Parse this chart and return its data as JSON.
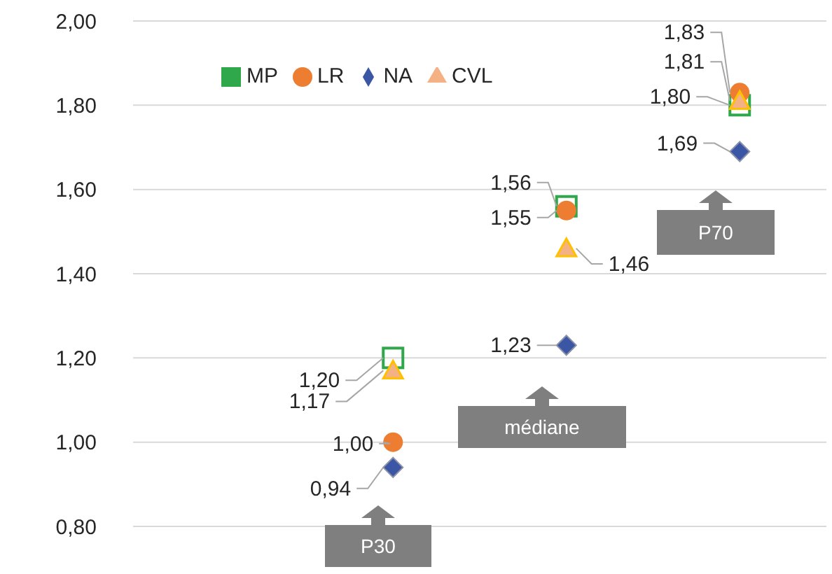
{
  "chart_data": {
    "type": "scatter",
    "categories": [
      null,
      null,
      null,
      null
    ],
    "series": [
      {
        "name": "MP",
        "color": "#2ea84a",
        "marker": "square",
        "values": [
          null,
          1.2,
          1.56,
          1.8
        ],
        "value_labels": [
          null,
          "1,20",
          "1,56",
          "1,80"
        ]
      },
      {
        "name": "LR",
        "color": "#ed7d31",
        "marker": "circle",
        "values": [
          null,
          1.0,
          1.55,
          1.83
        ],
        "value_labels": [
          null,
          "1,00",
          "1,55",
          "1,83"
        ]
      },
      {
        "name": "NA",
        "color": "#3a56a5",
        "marker": "diamond",
        "values": [
          null,
          0.94,
          1.23,
          1.69
        ],
        "value_labels": [
          null,
          "0,94",
          "1,23",
          "1,69"
        ]
      },
      {
        "name": "CVL",
        "color": "#f4b183",
        "marker": "triangle",
        "values": [
          null,
          1.17,
          1.46,
          1.81
        ],
        "value_labels": [
          null,
          "1,17",
          "1,46",
          "1,81"
        ]
      }
    ],
    "ylim": [
      0.8,
      2.0
    ],
    "yticks": [
      {
        "value": 0.8,
        "label": "0,80"
      },
      {
        "value": 1.0,
        "label": "1,00"
      },
      {
        "value": 1.2,
        "label": "1,20"
      },
      {
        "value": 1.4,
        "label": "1,40"
      },
      {
        "value": 1.6,
        "label": "1,60"
      },
      {
        "value": 1.8,
        "label": "1,80"
      },
      {
        "value": 2.0,
        "label": "2,00"
      }
    ],
    "grid": "y",
    "legend": "top left",
    "tick_labels": "y",
    "annotations": [
      "P30",
      "médiane",
      "P70"
    ]
  }
}
